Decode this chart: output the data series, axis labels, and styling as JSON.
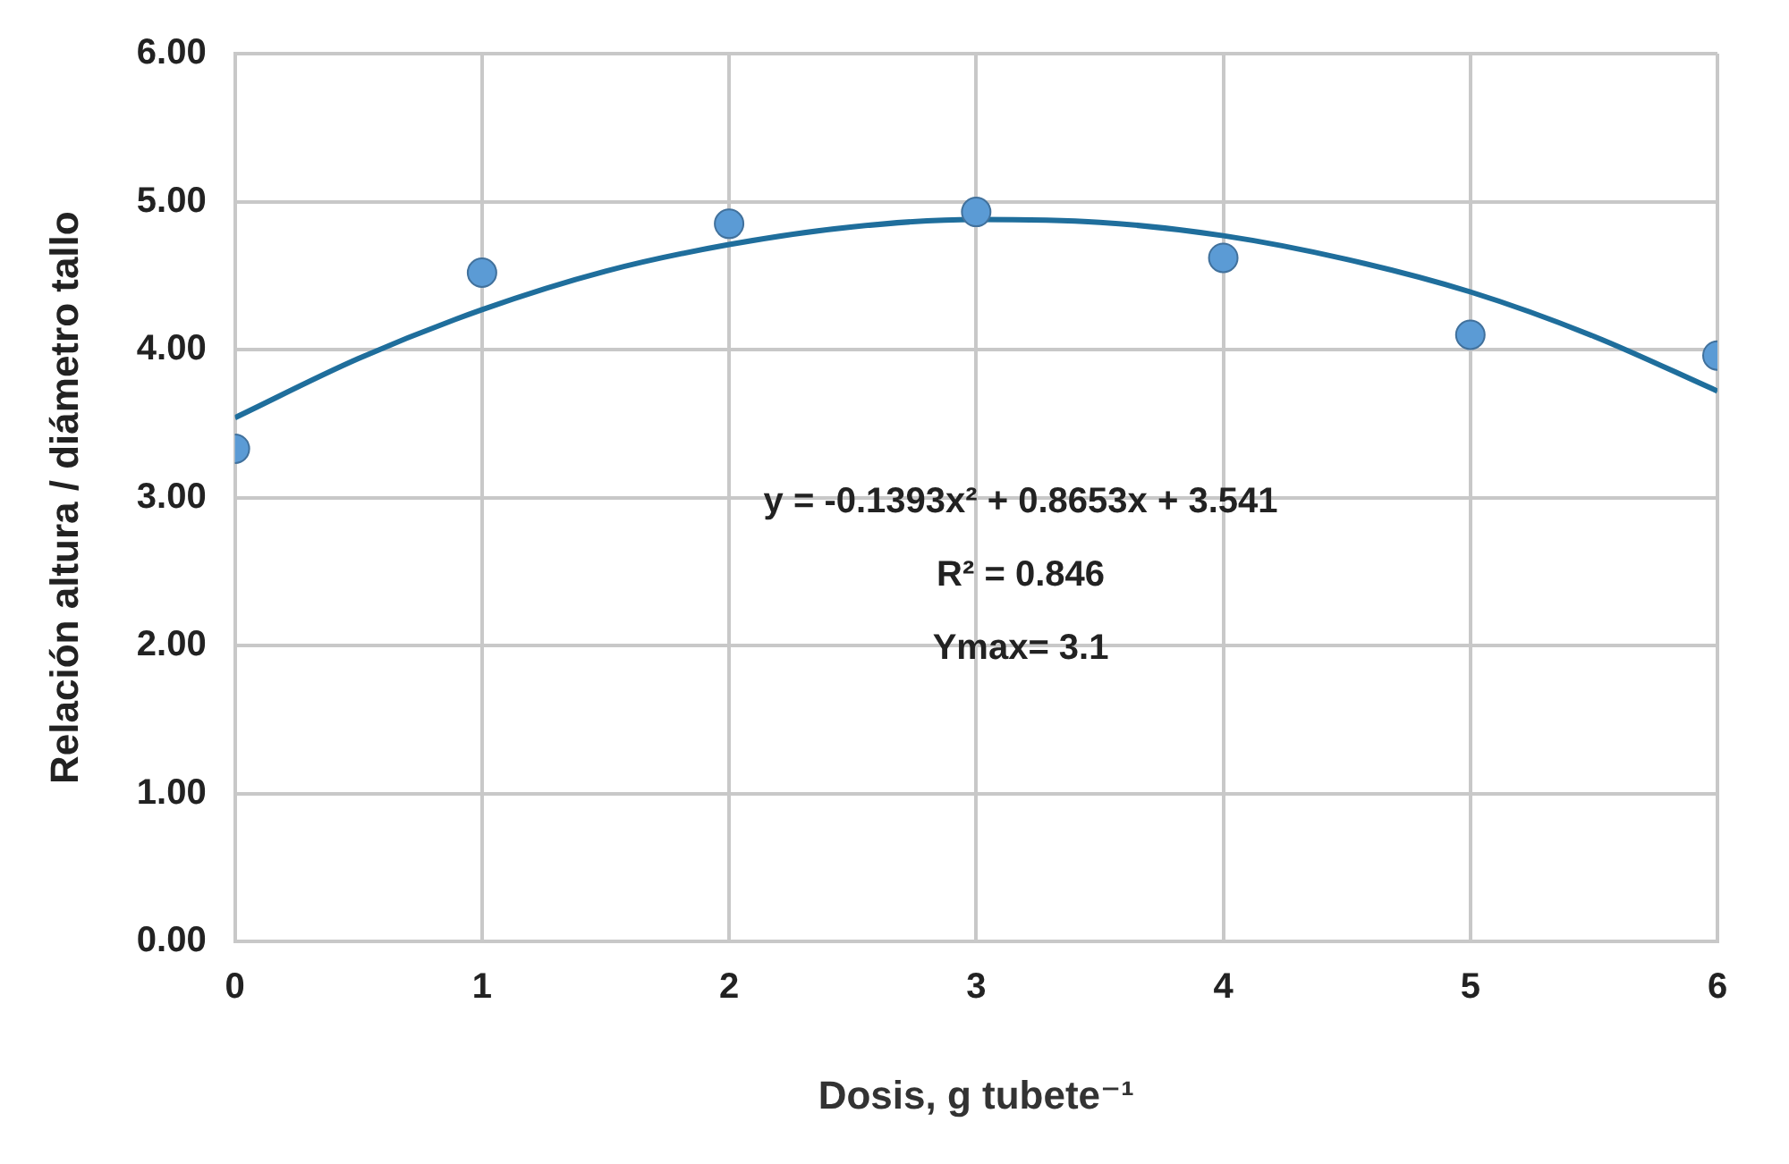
{
  "chart_data": {
    "type": "scatter",
    "xlabel": "Dosis, g tubete⁻¹",
    "ylabel": "Relación altura / diámetro tallo",
    "x": [
      0,
      1,
      2,
      3,
      4,
      5,
      6
    ],
    "series": [
      {
        "color": "#5b9bd5",
        "marker": "circle",
        "values": [
          3.33,
          4.52,
          4.85,
          4.93,
          4.62,
          4.1,
          3.96
        ]
      },
      {
        "type": "line",
        "marker": "none",
        "color": "#1f6e9c",
        "x": [
          0,
          0.5,
          1,
          1.5,
          2,
          2.5,
          3,
          3.5,
          4,
          4.5,
          5,
          5.5,
          6
        ],
        "values": [
          3.54,
          3.94,
          4.27,
          4.53,
          4.71,
          4.83,
          4.88,
          4.86,
          4.77,
          4.61,
          4.39,
          4.09,
          3.72
        ]
      }
    ],
    "xlim": [
      0,
      6
    ],
    "xticks": [
      0,
      1,
      2,
      3,
      4,
      5,
      6
    ],
    "ylim": [
      0,
      6
    ],
    "yticks": [
      {
        "value": 0,
        "label": "0.00"
      },
      {
        "value": 1,
        "label": "1.00"
      },
      {
        "value": 2,
        "label": "2.00"
      },
      {
        "value": 3,
        "label": "3.00"
      },
      {
        "value": 4,
        "label": "4.00"
      },
      {
        "value": 5,
        "label": "5.00"
      },
      {
        "value": 6,
        "label": "6.00"
      }
    ],
    "grid": true,
    "legend": false,
    "line_style": "solid",
    "annotations": [
      "y = -0.1393x² + 0.8653x + 3.541",
      "R² = 0.846",
      "Ymax= 3.1"
    ]
  }
}
